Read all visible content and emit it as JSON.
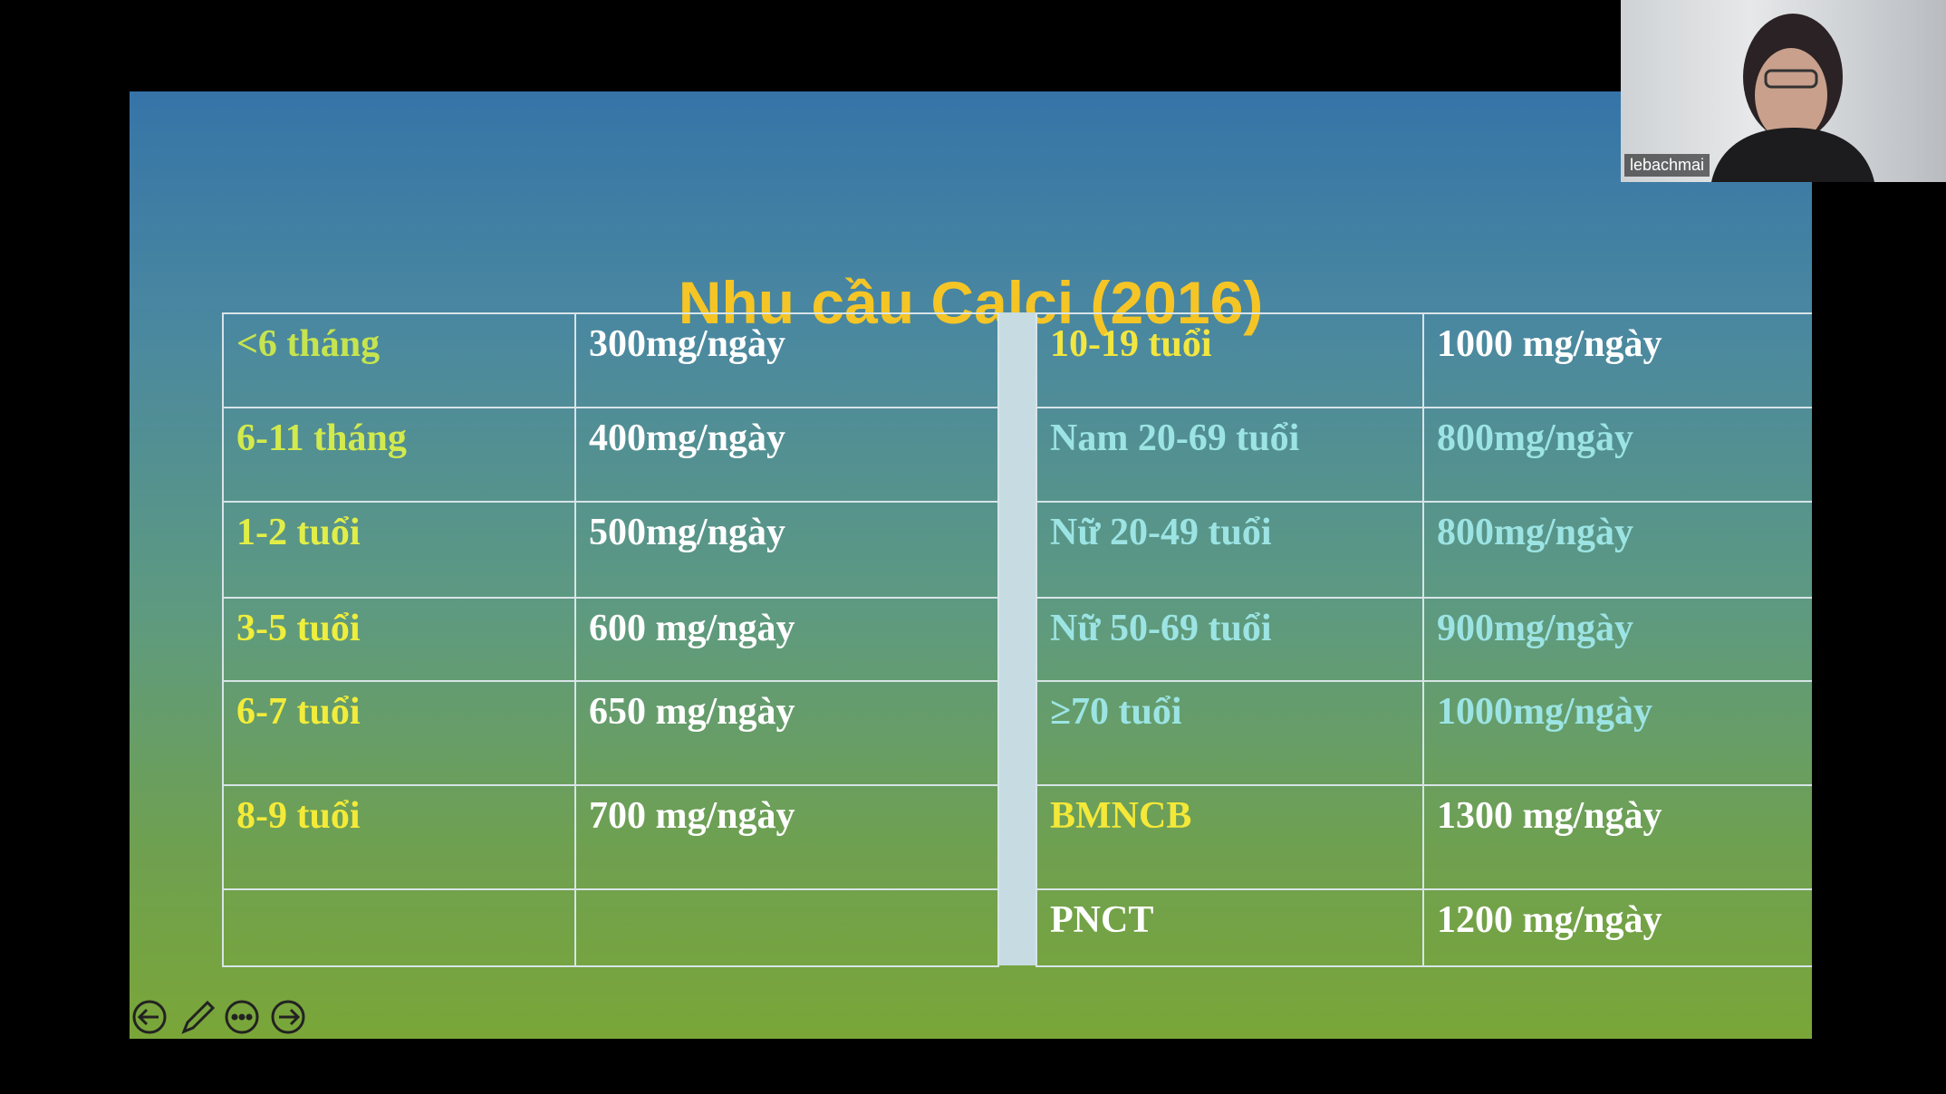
{
  "slide": {
    "title": "Nhu cầu Calci (2016)",
    "left_rows": [
      {
        "group": "<6 tháng",
        "amount": "300mg/ngày",
        "group_color": "#c6e44e",
        "amount_color": "#ffffff"
      },
      {
        "group": "6-11 tháng",
        "amount": "400mg/ngày",
        "group_color": "#d2ea4c",
        "amount_color": "#ffffff"
      },
      {
        "group": "1-2 tuổi",
        "amount": "500mg/ngày",
        "group_color": "#e2ee48",
        "amount_color": "#ffffff"
      },
      {
        "group": "3-5 tuổi",
        "amount": "600 mg/ngày",
        "group_color": "#eeee3c",
        "amount_color": "#ffffff"
      },
      {
        "group": "6-7 tuổi",
        "amount": "650 mg/ngày",
        "group_color": "#f2ec3a",
        "amount_color": "#ffffff"
      },
      {
        "group": "8-9 tuổi",
        "amount": "700 mg/ngày",
        "group_color": "#f4ea38",
        "amount_color": "#ffffff"
      }
    ],
    "right_rows": [
      {
        "group": "10-19 tuổi",
        "amount": "1000 mg/ngày",
        "group_color": "#f2e640",
        "amount_color": "#ffffff"
      },
      {
        "group": "Nam 20-69 tuổi",
        "amount": "800mg/ngày",
        "group_color": "#9ce4e4",
        "amount_color": "#9ce4e4"
      },
      {
        "group": "Nữ 20-49 tuổi",
        "amount": "800mg/ngày",
        "group_color": "#9ce4e4",
        "amount_color": "#9ce4e4"
      },
      {
        "group": "Nữ 50-69 tuổi",
        "amount": "900mg/ngày",
        "group_color": "#9ce4e4",
        "amount_color": "#9ce4e4"
      },
      {
        "group": "≥70 tuổi",
        "amount": "1000mg/ngày",
        "group_color": "#9ce4e4",
        "amount_color": "#9ce4e4"
      },
      {
        "group": "BMNCB",
        "amount": "1300 mg/ngày",
        "group_color": "#f4e838",
        "amount_color": "#ffffff"
      },
      {
        "group": "PNCT",
        "amount": "1200 mg/ngày",
        "group_color": "#ffffff",
        "amount_color": "#ffffff"
      }
    ]
  },
  "participant": {
    "name": "lebachmai"
  }
}
